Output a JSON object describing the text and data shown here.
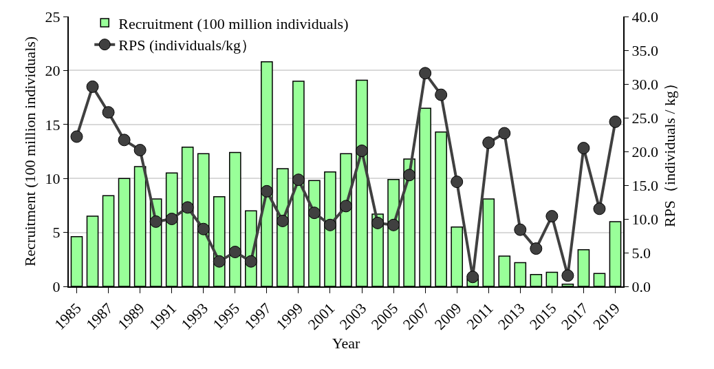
{
  "chart_data": {
    "type": "bar",
    "xlabel": "Year",
    "ylabel": "Recruitment (100 million individuals)",
    "y2label": "RPS（individuals / kg）",
    "categories": [
      "1985",
      null,
      "1987",
      null,
      "1989",
      null,
      "1991",
      null,
      "1993",
      null,
      "1995",
      null,
      "1997",
      null,
      "1999",
      null,
      "2001",
      null,
      "2003",
      null,
      "2005",
      null,
      "2007",
      null,
      "2009",
      null,
      "2011",
      null,
      "2013",
      null,
      "2015",
      null,
      "2017",
      null,
      "2019"
    ],
    "series": [
      {
        "name": "Recruitment (100 million individuals)",
        "color": "#99ff99",
        "values": [
          4.6,
          6.5,
          8.4,
          10.0,
          11.1,
          8.1,
          10.5,
          12.9,
          12.3,
          8.3,
          12.4,
          7.0,
          20.8,
          10.9,
          19.0,
          9.8,
          10.6,
          12.3,
          19.1,
          6.7,
          9.9,
          11.8,
          16.5,
          14.3,
          5.5,
          0.7,
          8.1,
          2.8,
          2.2,
          1.1,
          1.3,
          0.2,
          3.4,
          1.2,
          6.0
        ]
      },
      {
        "name": "RPS (individuals/kg）",
        "type": "line",
        "axis": "y2",
        "color": "#404040",
        "values": [
          22.2,
          29.6,
          25.8,
          21.7,
          20.2,
          9.6,
          10.0,
          11.7,
          8.5,
          3.7,
          5.1,
          3.7,
          14.1,
          9.7,
          15.8,
          10.9,
          9.1,
          11.9,
          20.1,
          9.4,
          9.1,
          16.5,
          31.6,
          28.4,
          15.5,
          1.4,
          21.3,
          22.7,
          8.4,
          5.6,
          10.4,
          1.6,
          20.5,
          11.5,
          24.4
        ]
      }
    ],
    "ylim": [
      0,
      25
    ],
    "yticks": [
      0,
      5,
      10,
      15,
      20,
      25
    ],
    "y2lim": [
      0,
      40
    ],
    "y2ticks": [
      {
        "value": 0,
        "label": "0.0"
      },
      {
        "value": 5,
        "label": "5.0"
      },
      {
        "value": 10,
        "label": "10.0"
      },
      {
        "value": 15,
        "label": "15.0"
      },
      {
        "value": 20,
        "label": "20.0"
      },
      {
        "value": 25,
        "label": "25.0"
      },
      {
        "value": 30,
        "label": "30.0"
      },
      {
        "value": 35,
        "label": "35.0"
      },
      {
        "value": 40,
        "label": "40.0"
      }
    ],
    "grid": "y",
    "legend": "top left",
    "marker": "circle",
    "line_style": "solid"
  }
}
